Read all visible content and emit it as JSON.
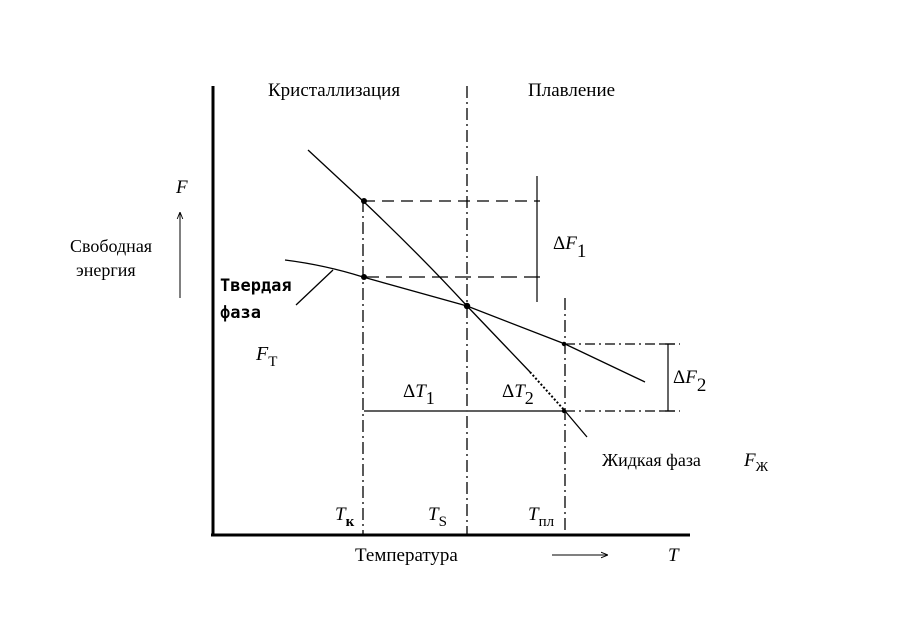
{
  "header": {
    "crystallization": "Кристаллизация",
    "melting": "Плавление"
  },
  "y_axis": {
    "symbol": "F",
    "label_line1": "Свободная",
    "label_line2": "энергия"
  },
  "x_axis": {
    "label": "Температура",
    "symbol": "T"
  },
  "solid_phase": {
    "label_line1": "Твердая",
    "label_line2": "фаза",
    "symbol": "F",
    "subscript": "Т"
  },
  "liquid_phase": {
    "label": "Жидкая фаза",
    "symbol": "F",
    "subscript": "Ж"
  },
  "delta_f1": {
    "prefix": "Δ",
    "symbol": "F",
    "subscript": "1"
  },
  "delta_f2": {
    "prefix": "Δ",
    "symbol": "F",
    "subscript": "2"
  },
  "delta_t1": {
    "prefix": "Δ",
    "symbol": "T",
    "subscript": "1"
  },
  "delta_t2": {
    "prefix": "Δ",
    "symbol": "T",
    "subscript": "2"
  },
  "temps": {
    "tk": {
      "symbol": "T",
      "subscript": "к"
    },
    "ts": {
      "symbol": "T",
      "subscript": "S"
    },
    "tpl": {
      "symbol": "T",
      "subscript": "пл"
    }
  },
  "colors": {
    "ink": "#000000",
    "background": "#ffffff"
  }
}
